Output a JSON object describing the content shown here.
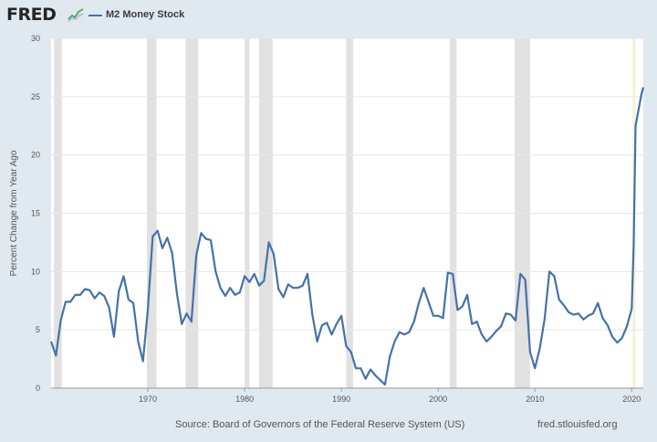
{
  "header": {
    "logo_text": "FRED",
    "logo_icon": "fred-line-chart-icon"
  },
  "footer": {
    "source": "Source: Board of Governors of the Federal Reserve System (US)",
    "link": "fred.stlouisfed.org"
  },
  "colors": {
    "series": "#4572a7",
    "background": "#e1e9f0",
    "plot_background": "#ffffff",
    "recession": "#e1e1e1",
    "covid_shade": "#f5f2d6"
  },
  "chart_data": {
    "type": "line",
    "title": "",
    "xlabel": "",
    "ylabel": "Percent Change from Year Ago",
    "xlim": [
      1960,
      2021.2
    ],
    "ylim": [
      0,
      30
    ],
    "grid": "horizontal",
    "legend_placement": "top-left",
    "yticks": [
      0,
      5,
      10,
      15,
      20,
      25,
      30
    ],
    "xticks": [
      1970,
      1980,
      1990,
      2000,
      2010,
      2020
    ],
    "recessions": [
      [
        1960.3,
        1961.1
      ],
      [
        1969.9,
        1970.9
      ],
      [
        1973.9,
        1975.2
      ],
      [
        1980.0,
        1980.5
      ],
      [
        1981.5,
        1982.9
      ],
      [
        1990.5,
        1991.2
      ],
      [
        2001.2,
        2001.9
      ],
      [
        2007.9,
        2009.5
      ],
      [
        2020.1,
        2020.4
      ]
    ],
    "series": [
      {
        "name": "M2 Money Stock",
        "x": [
          1960.0,
          1960.5,
          1961.0,
          1961.5,
          1962.0,
          1962.5,
          1963.0,
          1963.5,
          1964.0,
          1964.5,
          1965.0,
          1965.5,
          1966.0,
          1966.5,
          1967.0,
          1967.5,
          1968.0,
          1968.5,
          1969.0,
          1969.5,
          1970.0,
          1970.5,
          1971.0,
          1971.5,
          1972.0,
          1972.5,
          1973.0,
          1973.5,
          1974.0,
          1974.5,
          1975.0,
          1975.5,
          1976.0,
          1976.5,
          1977.0,
          1977.5,
          1978.0,
          1978.5,
          1979.0,
          1979.5,
          1980.0,
          1980.5,
          1981.0,
          1981.5,
          1982.0,
          1982.5,
          1983.0,
          1983.5,
          1984.0,
          1984.5,
          1985.0,
          1985.5,
          1986.0,
          1986.5,
          1987.0,
          1987.5,
          1988.0,
          1988.5,
          1989.0,
          1989.5,
          1990.0,
          1990.5,
          1991.0,
          1991.5,
          1992.0,
          1992.5,
          1993.0,
          1993.5,
          1994.0,
          1994.5,
          1995.0,
          1995.5,
          1996.0,
          1996.5,
          1997.0,
          1997.5,
          1998.0,
          1998.5,
          1999.0,
          1999.5,
          2000.0,
          2000.5,
          2001.0,
          2001.5,
          2002.0,
          2002.5,
          2003.0,
          2003.5,
          2004.0,
          2004.5,
          2005.0,
          2005.5,
          2006.0,
          2006.5,
          2007.0,
          2007.5,
          2008.0,
          2008.5,
          2009.0,
          2009.5,
          2010.0,
          2010.5,
          2011.0,
          2011.5,
          2012.0,
          2012.5,
          2013.0,
          2013.5,
          2014.0,
          2014.5,
          2015.0,
          2015.5,
          2016.0,
          2016.5,
          2017.0,
          2017.5,
          2018.0,
          2018.5,
          2019.0,
          2019.5,
          2020.0,
          2020.2,
          2020.4,
          2020.6,
          2020.8,
          2021.0,
          2021.2
        ],
        "values": [
          4.0,
          2.8,
          5.8,
          7.4,
          7.4,
          8.0,
          8.0,
          8.5,
          8.4,
          7.7,
          8.2,
          7.9,
          6.9,
          4.4,
          8.3,
          9.6,
          7.6,
          7.3,
          4.0,
          2.3,
          6.7,
          13.0,
          13.5,
          12.0,
          12.9,
          11.6,
          8.1,
          5.5,
          6.4,
          5.7,
          11.4,
          13.3,
          12.8,
          12.7,
          10.0,
          8.6,
          7.9,
          8.6,
          8.0,
          8.2,
          9.6,
          9.1,
          9.8,
          8.8,
          9.2,
          12.5,
          11.5,
          8.5,
          7.8,
          8.9,
          8.6,
          8.6,
          8.8,
          9.8,
          6.3,
          4.0,
          5.4,
          5.6,
          4.6,
          5.5,
          6.2,
          3.6,
          3.1,
          1.7,
          1.7,
          0.8,
          1.6,
          1.1,
          0.7,
          0.3,
          2.7,
          4.0,
          4.8,
          4.6,
          4.8,
          5.7,
          7.3,
          8.6,
          7.4,
          6.2,
          6.2,
          6.0,
          9.9,
          9.8,
          6.7,
          7.0,
          8.0,
          5.5,
          5.7,
          4.6,
          4.0,
          4.4,
          4.9,
          5.3,
          6.4,
          6.3,
          5.8,
          9.8,
          9.3,
          3.1,
          1.7,
          3.4,
          5.9,
          10.0,
          9.6,
          7.6,
          7.1,
          6.5,
          6.3,
          6.4,
          5.9,
          6.2,
          6.4,
          7.3,
          6.0,
          5.4,
          4.4,
          3.9,
          4.3,
          5.3,
          6.8,
          12.2,
          22.5,
          23.4,
          24.3,
          25.2,
          25.8
        ]
      }
    ]
  }
}
